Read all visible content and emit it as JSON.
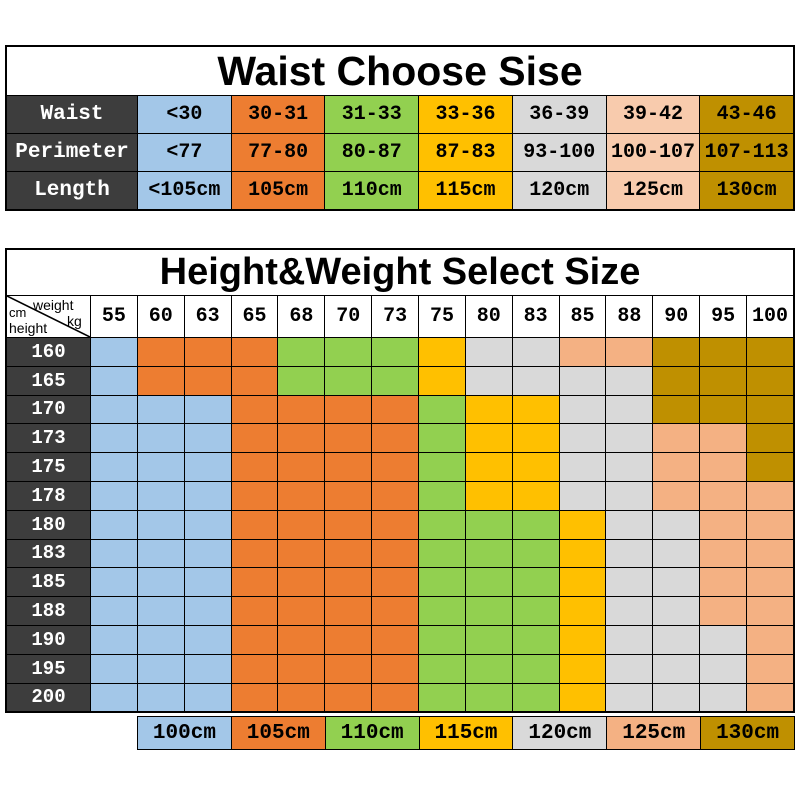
{
  "colors": {
    "blue": "#A3C7E8",
    "orange": "#ED7D31",
    "green": "#92D050",
    "yellow": "#FFC000",
    "gray": "#D9D9D9",
    "peach": "#F4B183",
    "peach_light": "#F8CBAD",
    "olive": "#BF9000",
    "header_dark": "#3D3D3D",
    "border": "#000000",
    "text": "#000000",
    "text_on_dark": "#FFFFFF"
  },
  "size_color_map": {
    "100": "blue",
    "105": "orange",
    "110": "green",
    "115": "yellow",
    "120": "gray",
    "125": "peach",
    "130": "olive"
  },
  "chart_data": [
    {
      "type": "table",
      "title": "Waist Choose Sise",
      "row_headers": [
        "Waist",
        "Perimeter",
        "Length"
      ],
      "rows": [
        [
          "<30",
          "30-31",
          "31-33",
          "33-36",
          "36-39",
          "39-42",
          "43-46"
        ],
        [
          "<77",
          "77-80",
          "80-87",
          "87-83",
          "93-100",
          "100-107",
          "107-113"
        ],
        [
          "<105cm",
          "105cm",
          "110cm",
          "115cm",
          "120cm",
          "125cm",
          "130cm"
        ]
      ],
      "column_colors": [
        "blue",
        "orange",
        "green",
        "yellow",
        "gray",
        "peach_light",
        "olive"
      ]
    },
    {
      "type": "heatmap",
      "title": "Height&Weight Select Size",
      "corner": {
        "y_unit": "cm",
        "x_name": "weight",
        "y_name": "height",
        "x_unit": "kg"
      },
      "x": [
        "55",
        "60",
        "63",
        "65",
        "68",
        "70",
        "73",
        "75",
        "80",
        "83",
        "85",
        "88",
        "90",
        "95",
        "100"
      ],
      "y": [
        "160",
        "165",
        "170",
        "173",
        "175",
        "178",
        "180",
        "183",
        "185",
        "188",
        "190",
        "195",
        "200"
      ],
      "values": [
        [
          "100",
          "105",
          "105",
          "105",
          "110",
          "110",
          "110",
          "115",
          "120",
          "120",
          "125",
          "125",
          "130",
          "130",
          "130"
        ],
        [
          "100",
          "105",
          "105",
          "105",
          "110",
          "110",
          "110",
          "115",
          "120",
          "120",
          "120",
          "120",
          "130",
          "130",
          "130"
        ],
        [
          "100",
          "100",
          "100",
          "105",
          "105",
          "105",
          "105",
          "110",
          "115",
          "115",
          "120",
          "120",
          "130",
          "130",
          "130"
        ],
        [
          "100",
          "100",
          "100",
          "105",
          "105",
          "105",
          "105",
          "110",
          "115",
          "115",
          "120",
          "120",
          "125",
          "125",
          "130"
        ],
        [
          "100",
          "100",
          "100",
          "105",
          "105",
          "105",
          "105",
          "110",
          "115",
          "115",
          "120",
          "120",
          "125",
          "125",
          "130"
        ],
        [
          "100",
          "100",
          "100",
          "105",
          "105",
          "105",
          "105",
          "110",
          "115",
          "115",
          "120",
          "120",
          "125",
          "125",
          "125"
        ],
        [
          "100",
          "100",
          "100",
          "105",
          "105",
          "105",
          "105",
          "110",
          "110",
          "110",
          "115",
          "120",
          "120",
          "125",
          "125"
        ],
        [
          "100",
          "100",
          "100",
          "105",
          "105",
          "105",
          "105",
          "110",
          "110",
          "110",
          "115",
          "120",
          "120",
          "125",
          "125"
        ],
        [
          "100",
          "100",
          "100",
          "105",
          "105",
          "105",
          "105",
          "110",
          "110",
          "110",
          "115",
          "120",
          "120",
          "125",
          "125"
        ],
        [
          "100",
          "100",
          "100",
          "105",
          "105",
          "105",
          "105",
          "110",
          "110",
          "110",
          "115",
          "120",
          "120",
          "125",
          "125"
        ],
        [
          "100",
          "100",
          "100",
          "105",
          "105",
          "105",
          "105",
          "110",
          "110",
          "110",
          "115",
          "120",
          "120",
          "120",
          "125"
        ],
        [
          "100",
          "100",
          "100",
          "105",
          "105",
          "105",
          "105",
          "110",
          "110",
          "110",
          "115",
          "120",
          "120",
          "120",
          "125"
        ],
        [
          "100",
          "100",
          "100",
          "105",
          "105",
          "105",
          "105",
          "110",
          "110",
          "110",
          "115",
          "120",
          "120",
          "120",
          "125"
        ]
      ],
      "legend": [
        {
          "label": "100cm",
          "size": "100"
        },
        {
          "label": "105cm",
          "size": "105"
        },
        {
          "label": "110cm",
          "size": "110"
        },
        {
          "label": "115cm",
          "size": "115"
        },
        {
          "label": "120cm",
          "size": "120"
        },
        {
          "label": "125cm",
          "size": "125"
        },
        {
          "label": "130cm",
          "size": "130"
        }
      ]
    }
  ]
}
